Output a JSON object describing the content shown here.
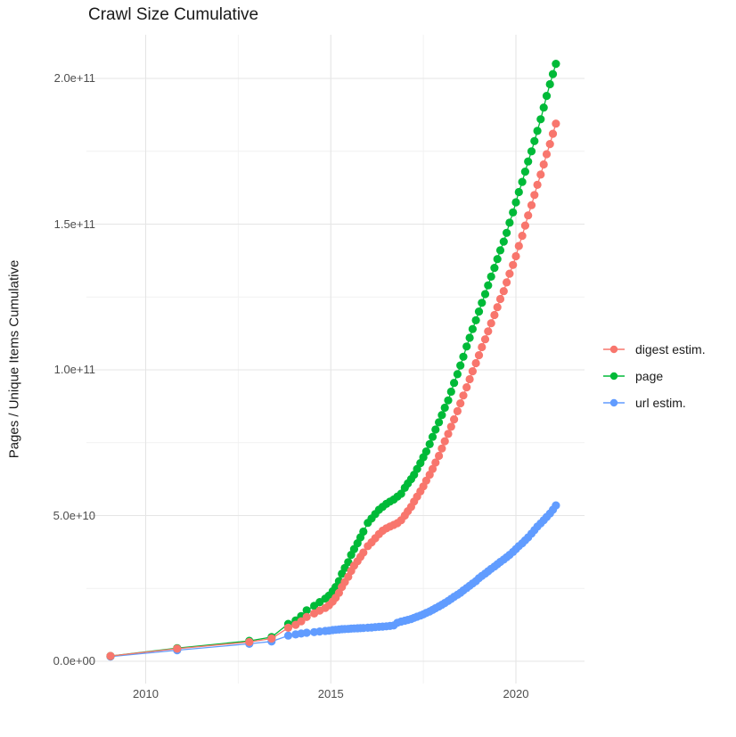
{
  "title": "Crawl Size Cumulative",
  "y_axis": {
    "label": "Pages / Unique Items Cumulative",
    "ticks": [
      {
        "label": "0.0e+00",
        "value_e9": 0
      },
      {
        "label": "5.0e+10",
        "value_e9": 50
      },
      {
        "label": "1.0e+11",
        "value_e9": 100
      },
      {
        "label": "1.5e+11",
        "value_e9": 150
      },
      {
        "label": "2.0e+11",
        "value_e9": 200
      }
    ],
    "minor_values_e9": [
      25,
      75,
      125,
      175
    ]
  },
  "x_axis": {
    "ticks": [
      {
        "label": "2010",
        "year": 2010
      },
      {
        "label": "2015",
        "year": 2015
      },
      {
        "label": "2020",
        "year": 2020
      }
    ],
    "minor_years": [
      2012.5,
      2017.5
    ]
  },
  "legend": {
    "items": [
      {
        "label": "digest estim.",
        "color": "#F8766D"
      },
      {
        "label": "page",
        "color": "#00BA38"
      },
      {
        "label": "url estim.",
        "color": "#619CFF"
      }
    ]
  },
  "colors": {
    "background": "#FFFFFF",
    "grid_major": "#E5E5E5",
    "grid_minor": "#F1F1F1",
    "tick_text": "#4D4D4D",
    "title_text": "#1A1A1A",
    "digest": "#F8766D",
    "page": "#00BA38",
    "url": "#619CFF"
  },
  "chart_data": {
    "type": "scatter",
    "title": "Crawl Size Cumulative",
    "xlabel": "",
    "ylabel": "Pages / Unique Items Cumulative",
    "xlim": [
      2008.4,
      2021.85
    ],
    "ylim": [
      0,
      215000000000.0
    ],
    "y_unit": "values are in billions (1e9) of pages / unique items",
    "grid": true,
    "legend_position": "right",
    "series": [
      {
        "name": "digest estim.",
        "color": "#F8766D",
        "points_year_e9": [
          [
            2009.05,
            1.8
          ],
          [
            2010.85,
            4.3
          ],
          [
            2012.8,
            6.6
          ],
          [
            2013.4,
            7.8
          ],
          [
            2013.85,
            11.5
          ],
          [
            2014.05,
            12.5
          ],
          [
            2014.2,
            13.7
          ],
          [
            2014.35,
            15.2
          ],
          [
            2014.55,
            16.4
          ],
          [
            2014.7,
            17.4
          ],
          [
            2014.85,
            18.3
          ],
          [
            2014.95,
            19.2
          ],
          [
            2015.05,
            20.5
          ],
          [
            2015.13,
            21.8
          ],
          [
            2015.22,
            23.5
          ],
          [
            2015.3,
            25.5
          ],
          [
            2015.38,
            27.2
          ],
          [
            2015.47,
            29.0
          ],
          [
            2015.55,
            31.0
          ],
          [
            2015.63,
            32.8
          ],
          [
            2015.72,
            34.3
          ],
          [
            2015.8,
            35.8
          ],
          [
            2015.88,
            37.3
          ],
          [
            2016.0,
            39.5
          ],
          [
            2016.1,
            40.8
          ],
          [
            2016.2,
            42.2
          ],
          [
            2016.3,
            43.6
          ],
          [
            2016.4,
            44.8
          ],
          [
            2016.5,
            45.6
          ],
          [
            2016.6,
            46.2
          ],
          [
            2016.7,
            46.8
          ],
          [
            2016.8,
            47.4
          ],
          [
            2016.9,
            48.4
          ],
          [
            2017.0,
            50.0
          ],
          [
            2017.08,
            51.5
          ],
          [
            2017.17,
            53.0
          ],
          [
            2017.25,
            54.8
          ],
          [
            2017.33,
            56.5
          ],
          [
            2017.42,
            58.3
          ],
          [
            2017.5,
            60.0
          ],
          [
            2017.58,
            62.0
          ],
          [
            2017.67,
            64.0
          ],
          [
            2017.75,
            66.0
          ],
          [
            2017.83,
            68.2
          ],
          [
            2017.92,
            70.5
          ],
          [
            2018.0,
            73.0
          ],
          [
            2018.08,
            75.5
          ],
          [
            2018.17,
            78.0
          ],
          [
            2018.25,
            80.5
          ],
          [
            2018.33,
            83.0
          ],
          [
            2018.42,
            85.8
          ],
          [
            2018.5,
            88.5
          ],
          [
            2018.58,
            91.2
          ],
          [
            2018.67,
            94.0
          ],
          [
            2018.75,
            96.8
          ],
          [
            2018.83,
            99.5
          ],
          [
            2018.92,
            102.3
          ],
          [
            2019.0,
            105.0
          ],
          [
            2019.08,
            107.8
          ],
          [
            2019.17,
            110.5
          ],
          [
            2019.25,
            113.2
          ],
          [
            2019.33,
            116.0
          ],
          [
            2019.42,
            118.8
          ],
          [
            2019.5,
            121.5
          ],
          [
            2019.58,
            124.3
          ],
          [
            2019.67,
            127.0
          ],
          [
            2019.75,
            130.0
          ],
          [
            2019.83,
            133.0
          ],
          [
            2019.92,
            136.0
          ],
          [
            2020.0,
            139.0
          ],
          [
            2020.08,
            142.5
          ],
          [
            2020.17,
            146.0
          ],
          [
            2020.25,
            149.5
          ],
          [
            2020.33,
            153.0
          ],
          [
            2020.42,
            156.5
          ],
          [
            2020.5,
            160.0
          ],
          [
            2020.58,
            163.5
          ],
          [
            2020.67,
            167.0
          ],
          [
            2020.75,
            170.5
          ],
          [
            2020.83,
            174.0
          ],
          [
            2020.92,
            177.5
          ],
          [
            2021.0,
            181.0
          ],
          [
            2021.08,
            184.5
          ]
        ]
      },
      {
        "name": "page",
        "color": "#00BA38",
        "points_year_e9": [
          [
            2009.05,
            1.8
          ],
          [
            2010.85,
            4.5
          ],
          [
            2012.8,
            7.0
          ],
          [
            2013.4,
            8.3
          ],
          [
            2013.85,
            12.8
          ],
          [
            2014.05,
            14.0
          ],
          [
            2014.2,
            15.5
          ],
          [
            2014.35,
            17.5
          ],
          [
            2014.55,
            19.0
          ],
          [
            2014.7,
            20.3
          ],
          [
            2014.85,
            21.5
          ],
          [
            2014.95,
            22.5
          ],
          [
            2015.05,
            24.0
          ],
          [
            2015.13,
            25.5
          ],
          [
            2015.22,
            27.5
          ],
          [
            2015.3,
            30.0
          ],
          [
            2015.38,
            32.0
          ],
          [
            2015.47,
            34.0
          ],
          [
            2015.55,
            36.5
          ],
          [
            2015.63,
            38.5
          ],
          [
            2015.72,
            40.5
          ],
          [
            2015.8,
            42.5
          ],
          [
            2015.88,
            44.5
          ],
          [
            2016.0,
            47.5
          ],
          [
            2016.1,
            49.0
          ],
          [
            2016.2,
            50.5
          ],
          [
            2016.3,
            52.0
          ],
          [
            2016.4,
            53.0
          ],
          [
            2016.5,
            54.0
          ],
          [
            2016.6,
            54.8
          ],
          [
            2016.7,
            55.5
          ],
          [
            2016.8,
            56.5
          ],
          [
            2016.9,
            57.5
          ],
          [
            2017.0,
            59.5
          ],
          [
            2017.08,
            61.0
          ],
          [
            2017.17,
            62.5
          ],
          [
            2017.25,
            64.0
          ],
          [
            2017.33,
            66.0
          ],
          [
            2017.42,
            68.0
          ],
          [
            2017.5,
            70.0
          ],
          [
            2017.58,
            72.0
          ],
          [
            2017.67,
            74.5
          ],
          [
            2017.75,
            77.0
          ],
          [
            2017.83,
            79.5
          ],
          [
            2017.92,
            82.0
          ],
          [
            2018.0,
            84.5
          ],
          [
            2018.08,
            87.0
          ],
          [
            2018.17,
            89.5
          ],
          [
            2018.25,
            92.5
          ],
          [
            2018.33,
            95.5
          ],
          [
            2018.42,
            98.5
          ],
          [
            2018.5,
            101.5
          ],
          [
            2018.58,
            104.5
          ],
          [
            2018.67,
            108.0
          ],
          [
            2018.75,
            111.0
          ],
          [
            2018.83,
            114.0
          ],
          [
            2018.92,
            117.0
          ],
          [
            2019.0,
            120.0
          ],
          [
            2019.08,
            123.0
          ],
          [
            2019.17,
            126.0
          ],
          [
            2019.25,
            129.0
          ],
          [
            2019.33,
            132.0
          ],
          [
            2019.42,
            135.0
          ],
          [
            2019.5,
            138.0
          ],
          [
            2019.58,
            141.0
          ],
          [
            2019.67,
            144.0
          ],
          [
            2019.75,
            147.0
          ],
          [
            2019.83,
            150.5
          ],
          [
            2019.92,
            154.0
          ],
          [
            2020.0,
            157.5
          ],
          [
            2020.08,
            161.0
          ],
          [
            2020.17,
            164.5
          ],
          [
            2020.25,
            168.0
          ],
          [
            2020.33,
            171.5
          ],
          [
            2020.42,
            175.0
          ],
          [
            2020.5,
            178.5
          ],
          [
            2020.58,
            182.0
          ],
          [
            2020.67,
            186.0
          ],
          [
            2020.75,
            190.0
          ],
          [
            2020.83,
            194.0
          ],
          [
            2020.92,
            198.0
          ],
          [
            2021.0,
            201.5
          ],
          [
            2021.08,
            205.0
          ]
        ]
      },
      {
        "name": "url estim.",
        "color": "#619CFF",
        "points_year_e9": [
          [
            2009.05,
            1.6
          ],
          [
            2010.85,
            3.8
          ],
          [
            2012.8,
            6.0
          ],
          [
            2013.4,
            6.8
          ],
          [
            2013.85,
            8.8
          ],
          [
            2014.05,
            9.2
          ],
          [
            2014.2,
            9.5
          ],
          [
            2014.35,
            9.8
          ],
          [
            2014.55,
            10.0
          ],
          [
            2014.7,
            10.2
          ],
          [
            2014.85,
            10.4
          ],
          [
            2014.95,
            10.5
          ],
          [
            2015.05,
            10.7
          ],
          [
            2015.13,
            10.8
          ],
          [
            2015.22,
            10.9
          ],
          [
            2015.3,
            11.0
          ],
          [
            2015.38,
            11.05
          ],
          [
            2015.47,
            11.1
          ],
          [
            2015.55,
            11.2
          ],
          [
            2015.63,
            11.25
          ],
          [
            2015.72,
            11.3
          ],
          [
            2015.8,
            11.35
          ],
          [
            2015.88,
            11.4
          ],
          [
            2016.0,
            11.5
          ],
          [
            2016.1,
            11.6
          ],
          [
            2016.2,
            11.7
          ],
          [
            2016.3,
            11.8
          ],
          [
            2016.4,
            11.9
          ],
          [
            2016.5,
            12.0
          ],
          [
            2016.6,
            12.1
          ],
          [
            2016.7,
            12.3
          ],
          [
            2016.8,
            13.2
          ],
          [
            2016.9,
            13.6
          ],
          [
            2017.0,
            13.9
          ],
          [
            2017.08,
            14.2
          ],
          [
            2017.17,
            14.5
          ],
          [
            2017.25,
            14.9
          ],
          [
            2017.33,
            15.3
          ],
          [
            2017.42,
            15.7
          ],
          [
            2017.5,
            16.1
          ],
          [
            2017.58,
            16.6
          ],
          [
            2017.67,
            17.1
          ],
          [
            2017.75,
            17.6
          ],
          [
            2017.83,
            18.2
          ],
          [
            2017.92,
            18.8
          ],
          [
            2018.0,
            19.4
          ],
          [
            2018.08,
            20.0
          ],
          [
            2018.17,
            20.7
          ],
          [
            2018.25,
            21.4
          ],
          [
            2018.33,
            22.1
          ],
          [
            2018.42,
            22.8
          ],
          [
            2018.5,
            23.5
          ],
          [
            2018.58,
            24.3
          ],
          [
            2018.67,
            25.1
          ],
          [
            2018.75,
            25.9
          ],
          [
            2018.83,
            26.7
          ],
          [
            2018.92,
            27.5
          ],
          [
            2019.0,
            28.5
          ],
          [
            2019.08,
            29.3
          ],
          [
            2019.17,
            30.1
          ],
          [
            2019.25,
            30.9
          ],
          [
            2019.33,
            31.7
          ],
          [
            2019.42,
            32.5
          ],
          [
            2019.5,
            33.3
          ],
          [
            2019.58,
            34.1
          ],
          [
            2019.67,
            34.9
          ],
          [
            2019.75,
            35.7
          ],
          [
            2019.83,
            36.5
          ],
          [
            2019.92,
            37.5
          ],
          [
            2020.0,
            38.5
          ],
          [
            2020.08,
            39.5
          ],
          [
            2020.17,
            40.5
          ],
          [
            2020.25,
            41.5
          ],
          [
            2020.33,
            42.5
          ],
          [
            2020.42,
            43.8
          ],
          [
            2020.5,
            45.0
          ],
          [
            2020.58,
            46.2
          ],
          [
            2020.67,
            47.3
          ],
          [
            2020.75,
            48.4
          ],
          [
            2020.83,
            49.5
          ],
          [
            2020.92,
            50.7
          ],
          [
            2021.0,
            52.0
          ],
          [
            2021.08,
            53.5
          ]
        ]
      }
    ]
  }
}
